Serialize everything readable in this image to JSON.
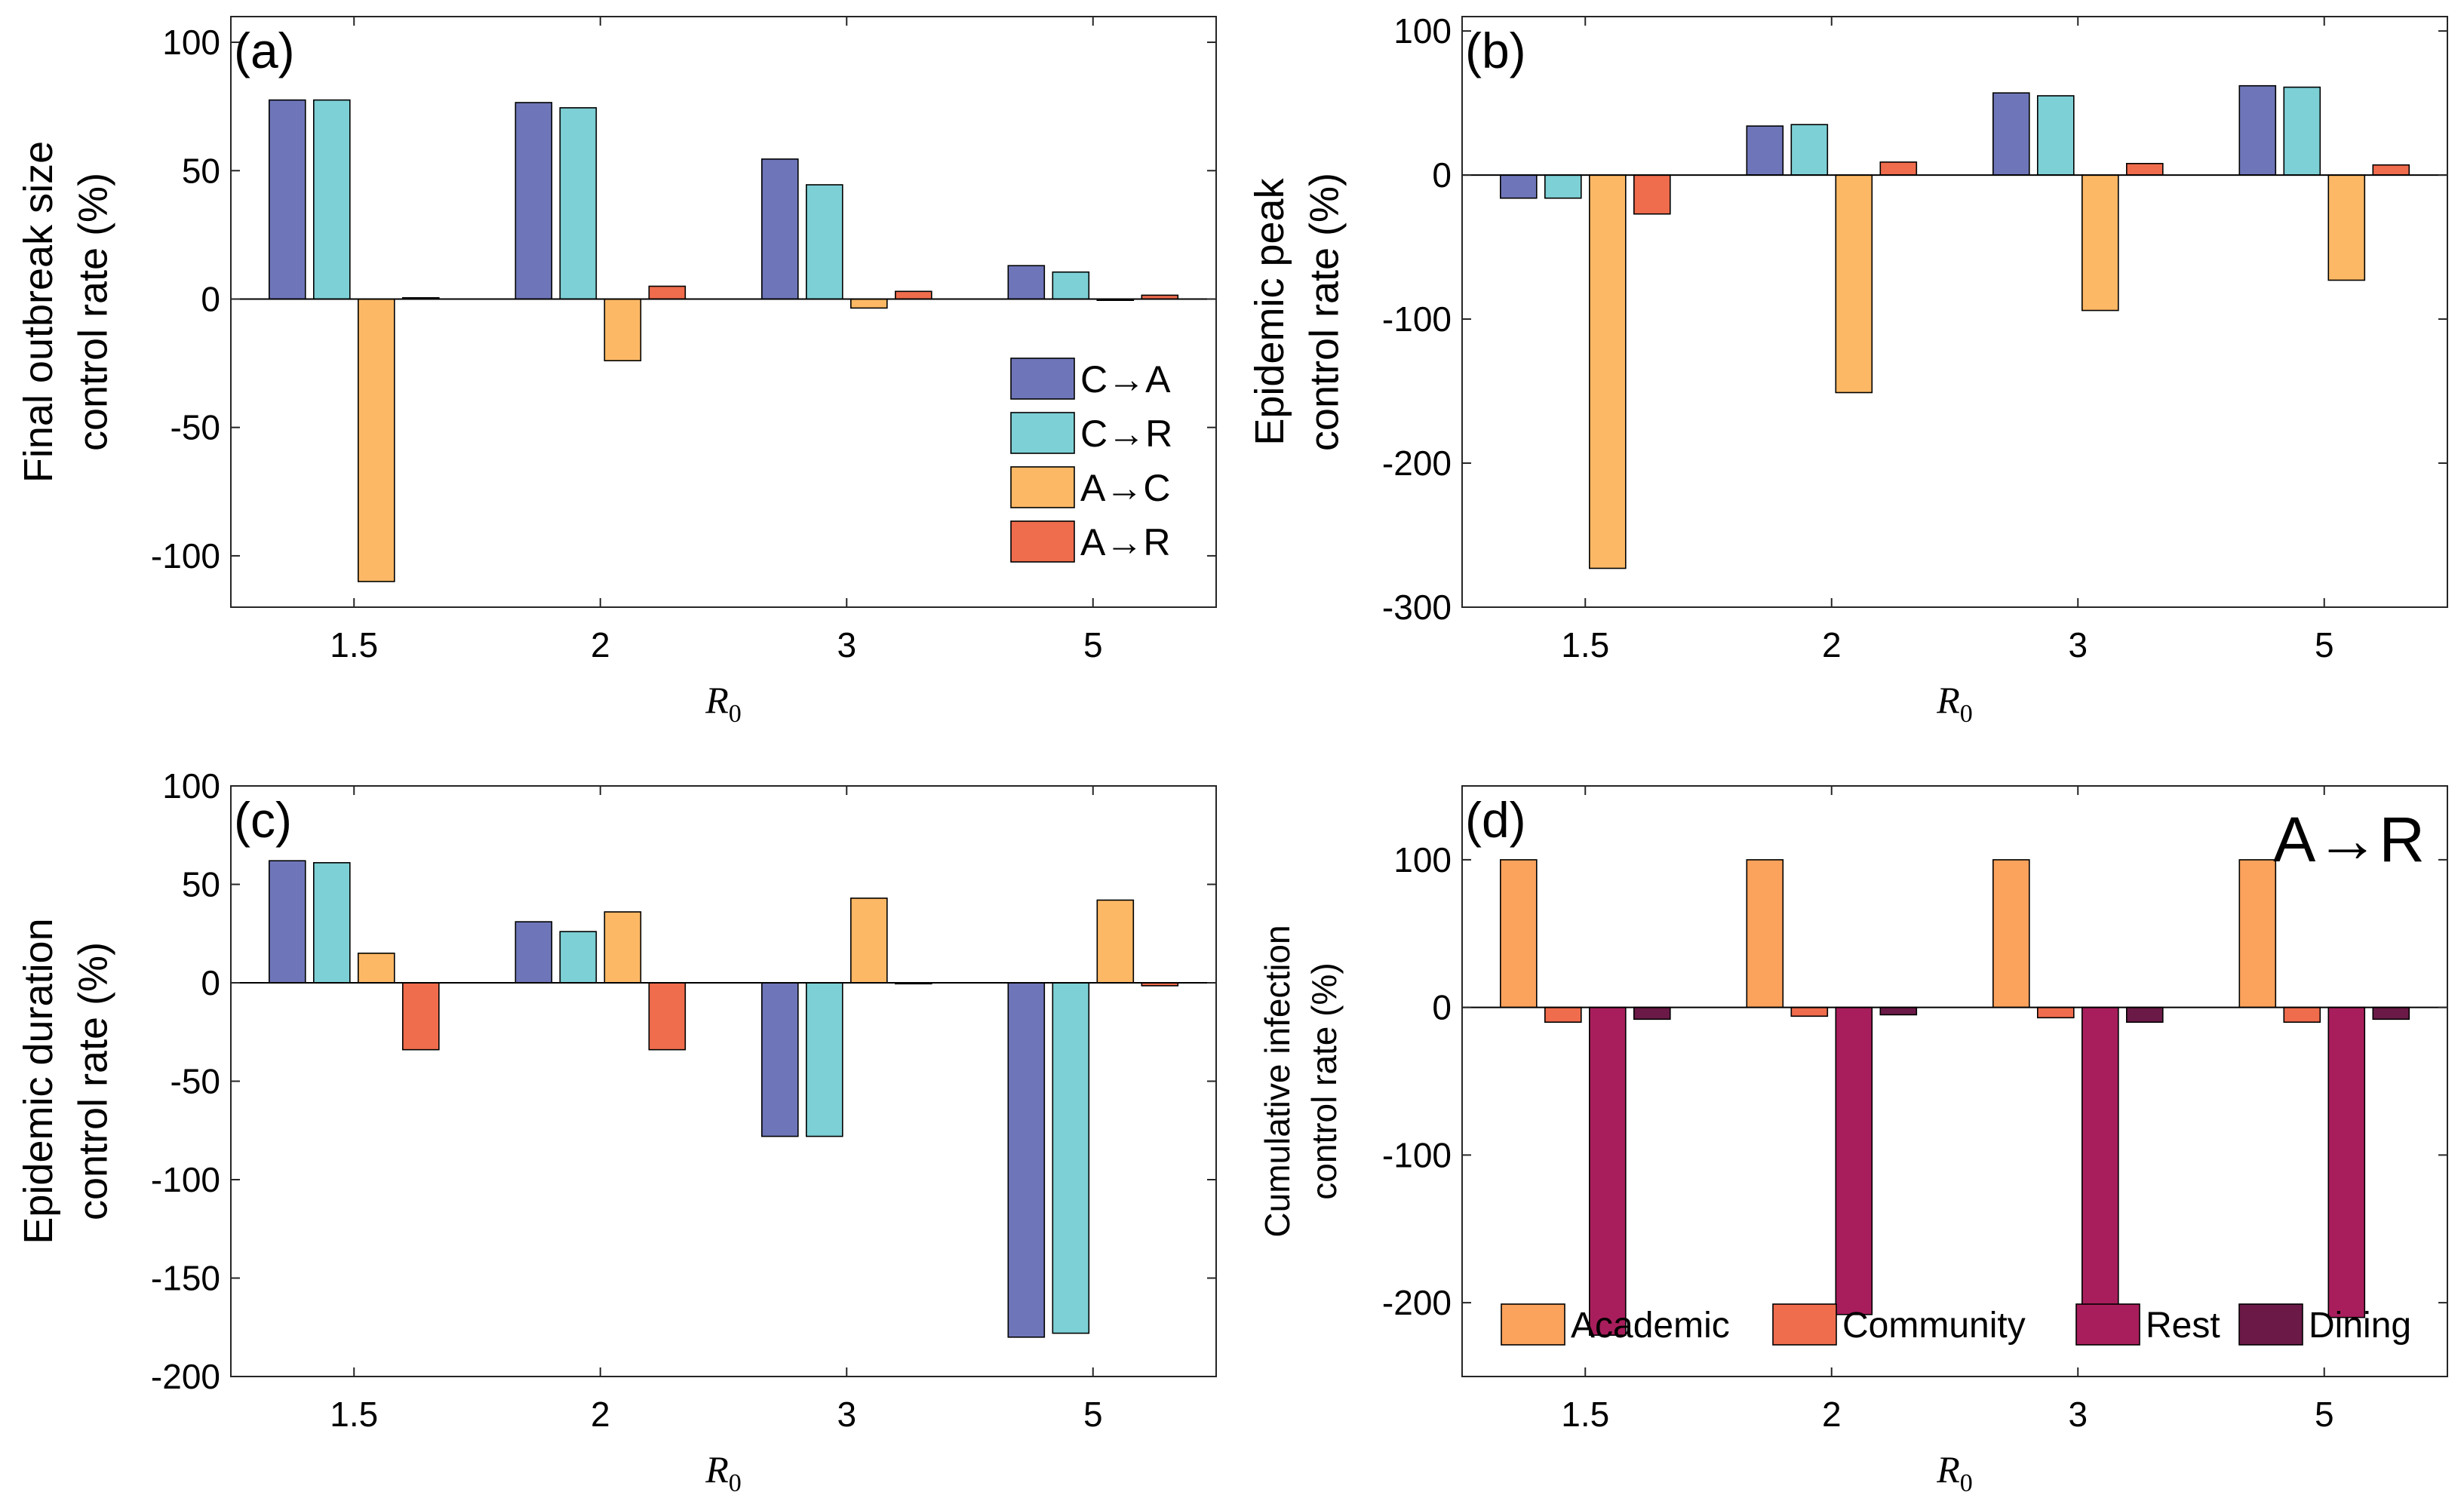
{
  "colors": {
    "C→A": "#6e76b9",
    "C→R": "#7dd0d5",
    "A→C": "#fcb865",
    "A→R": "#ef6c4d",
    "Academic": "#fba25c",
    "Community": "#ef6c4d",
    "Rest": "#a81e5c",
    "Dining": "#6b1a48"
  },
  "chart_data": [
    {
      "panel": "(a)",
      "type": "bar",
      "ylabel": [
        "Final outbreak size",
        "control rate (%)"
      ],
      "xlabel_base": "R",
      "xlabel_sub": "0",
      "categories": [
        "1.5",
        "2",
        "3",
        "5"
      ],
      "ylim": [
        -120,
        110
      ],
      "yticks": [
        100,
        50,
        0,
        -50,
        -100
      ],
      "series": [
        {
          "name": "C→A",
          "values": [
            77.5,
            76.5,
            54.5,
            13
          ]
        },
        {
          "name": "C→R",
          "values": [
            77.5,
            74.5,
            44.5,
            10.5
          ]
        },
        {
          "name": "A→C",
          "values": [
            -110,
            -24,
            -3.5,
            -0.5
          ]
        },
        {
          "name": "A→R",
          "values": [
            0.5,
            5,
            3,
            1.5
          ]
        }
      ],
      "legend": {
        "entries": [
          "C→A",
          "C→R",
          "A→C",
          "A→R"
        ],
        "placement": "right",
        "layout": "vertical"
      }
    },
    {
      "panel": "(b)",
      "type": "bar",
      "ylabel": [
        "Epidemic peak",
        "control rate (%)"
      ],
      "xlabel_base": "R",
      "xlabel_sub": "0",
      "categories": [
        "1.5",
        "2",
        "3",
        "5"
      ],
      "ylim": [
        -300,
        110
      ],
      "yticks": [
        100,
        0,
        -100,
        -200,
        -300
      ],
      "series": [
        {
          "name": "C→A",
          "values": [
            -16,
            34,
            57,
            62
          ]
        },
        {
          "name": "C→R",
          "values": [
            -16,
            35,
            55,
            61
          ]
        },
        {
          "name": "A→C",
          "values": [
            -273,
            -151,
            -94,
            -73
          ]
        },
        {
          "name": "A→R",
          "values": [
            -27,
            9,
            8,
            7
          ]
        }
      ]
    },
    {
      "panel": "(c)",
      "type": "bar",
      "ylabel": [
        "Epidemic duration",
        "control rate (%)"
      ],
      "xlabel_base": "R",
      "xlabel_sub": "0",
      "categories": [
        "1.5",
        "2",
        "3",
        "5"
      ],
      "ylim": [
        -200,
        100
      ],
      "yticks": [
        100,
        50,
        0,
        -50,
        -100,
        -150,
        -200
      ],
      "series": [
        {
          "name": "C→A",
          "values": [
            62,
            31,
            -78,
            -180
          ]
        },
        {
          "name": "C→R",
          "values": [
            61,
            26,
            -78,
            -178
          ]
        },
        {
          "name": "A→C",
          "values": [
            15,
            36,
            43,
            42
          ]
        },
        {
          "name": "A→R",
          "values": [
            -34,
            -34,
            -0.5,
            -1.5
          ]
        }
      ]
    },
    {
      "panel": "(d)",
      "type": "bar",
      "annotation": "A→R",
      "ylabel": [
        "Cumulative infection",
        "control rate (%)"
      ],
      "xlabel_base": "R",
      "xlabel_sub": "0",
      "categories": [
        "1.5",
        "2",
        "3",
        "5"
      ],
      "ylim": [
        -250,
        150
      ],
      "yticks": [
        100,
        0,
        -100,
        -200
      ],
      "series": [
        {
          "name": "Academic",
          "values": [
            100,
            100,
            100,
            100
          ]
        },
        {
          "name": "Community",
          "values": [
            -10,
            -6,
            -7,
            -10
          ]
        },
        {
          "name": "Rest",
          "values": [
            -222,
            -208,
            -212,
            -210
          ]
        },
        {
          "name": "Dining",
          "values": [
            -8,
            -5,
            -10,
            -8
          ]
        }
      ],
      "legend": {
        "entries": [
          "Academic",
          "Community",
          "Rest",
          "Dining"
        ],
        "placement": "bottom",
        "layout": "horizontal"
      }
    }
  ]
}
